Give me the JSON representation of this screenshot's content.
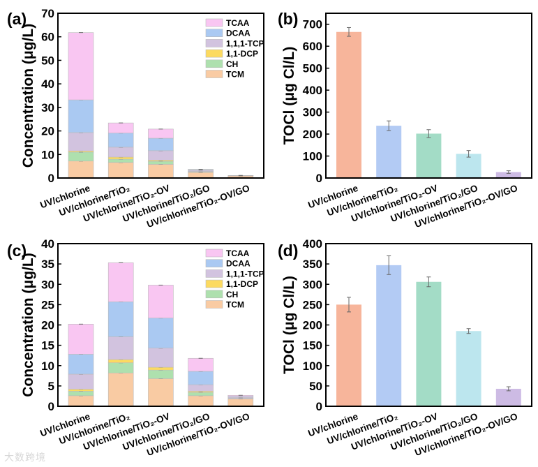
{
  "watermark": "大数跨境",
  "colors": {
    "TCM": "#f9cba3",
    "CH": "#aee0ae",
    "1,1-DCP": "#fcda60",
    "1,1,1-TCP": "#d2c3df",
    "DCAA": "#aac9f2",
    "TCAA": "#f9c6f2",
    "toci_bars": [
      "#f7b59b",
      "#b3cbf4",
      "#a3dcc6",
      "#bce6ee",
      "#cdbbe4"
    ]
  },
  "chart_data": [
    {
      "panel": "(a)",
      "type": "bar",
      "stacked": true,
      "ylabel": "Concentration (μg/L)",
      "ylim": [
        0,
        70
      ],
      "yticks": [
        0,
        10,
        20,
        30,
        40,
        50,
        60,
        70
      ],
      "categories": [
        "UV/chlorine",
        "UV/chlorine/TiO₂",
        "UV/chlorine/TiO₂-OV",
        "UV/chlorine/TiO₂/GO",
        "UV/chlorine/TiO₂-OV/GO"
      ],
      "legend_position": "top-right",
      "series": [
        {
          "name": "TCM",
          "values": [
            7.2,
            6.6,
            5.8,
            2.4,
            0.9
          ]
        },
        {
          "name": "CH",
          "values": [
            3.8,
            1.4,
            1.3,
            0.3,
            0.05
          ]
        },
        {
          "name": "1,1-DCP",
          "values": [
            0.5,
            0.9,
            0.5,
            0.1,
            0.05
          ]
        },
        {
          "name": "1,1,1-TCP",
          "values": [
            7.8,
            4.2,
            4.0,
            0.5,
            0.05
          ]
        },
        {
          "name": "DCAA",
          "values": [
            13.9,
            6.0,
            5.3,
            0.3,
            0.05
          ]
        },
        {
          "name": "TCAA",
          "values": [
            28.6,
            4.3,
            3.9,
            0.1,
            0.0
          ]
        }
      ]
    },
    {
      "panel": "(b)",
      "type": "bar",
      "ylabel": "TOCl (μg Cl/L)",
      "ylim": [
        0,
        750
      ],
      "yticks": [
        0,
        100,
        200,
        300,
        400,
        500,
        600,
        700
      ],
      "categories": [
        "UV/chlorine",
        "UV/chlorine/TiO₂",
        "UV/chlorine/TiO₂-OV",
        "UV/chlorine/TiO₂/GO",
        "UV/chlorine/TiO₂-OV/GO"
      ],
      "values": [
        665,
        238,
        202,
        110,
        27
      ],
      "errors": [
        20,
        22,
        18,
        15,
        6
      ]
    },
    {
      "panel": "(c)",
      "type": "bar",
      "stacked": true,
      "ylabel": "Concentration (μg/L)",
      "ylim": [
        0,
        40
      ],
      "yticks": [
        0,
        5,
        10,
        15,
        20,
        25,
        30,
        35,
        40
      ],
      "categories": [
        "UV/chlorine",
        "UV/chlorine/TiO₂",
        "UV/chlorine/TiO₂-OV",
        "UV/chlorine/TiO₂/GO",
        "UV/chlorine/TiO₂-OV/GO"
      ],
      "legend_position": "top-right",
      "series": [
        {
          "name": "TCM",
          "values": [
            2.6,
            8.2,
            6.8,
            2.6,
            1.8
          ]
        },
        {
          "name": "CH",
          "values": [
            1.1,
            2.5,
            2.1,
            0.8,
            0.1
          ]
        },
        {
          "name": "1,1-DCP",
          "values": [
            0.5,
            0.8,
            0.7,
            0.3,
            0.05
          ]
        },
        {
          "name": "1,1,1-TCP",
          "values": [
            3.7,
            5.6,
            4.7,
            1.6,
            0.25
          ]
        },
        {
          "name": "DCAA",
          "values": [
            4.9,
            8.6,
            7.4,
            3.3,
            0.2
          ]
        },
        {
          "name": "TCAA",
          "values": [
            7.4,
            9.6,
            8.1,
            3.2,
            0.3
          ]
        }
      ]
    },
    {
      "panel": "(d)",
      "type": "bar",
      "ylabel": "TOCl (μg Cl/L)",
      "ylim": [
        0,
        400
      ],
      "yticks": [
        0,
        50,
        100,
        150,
        200,
        250,
        300,
        350,
        400
      ],
      "categories": [
        "UV/chlorine",
        "UV/chlorine/TiO₂",
        "UV/chlorine/TiO₂-OV",
        "UV/chlorine/TiO₂/GO",
        "UV/chlorine/TiO₂-OV/GO"
      ],
      "values": [
        250,
        347,
        306,
        185,
        43
      ],
      "errors": [
        18,
        23,
        12,
        6,
        5
      ]
    }
  ]
}
